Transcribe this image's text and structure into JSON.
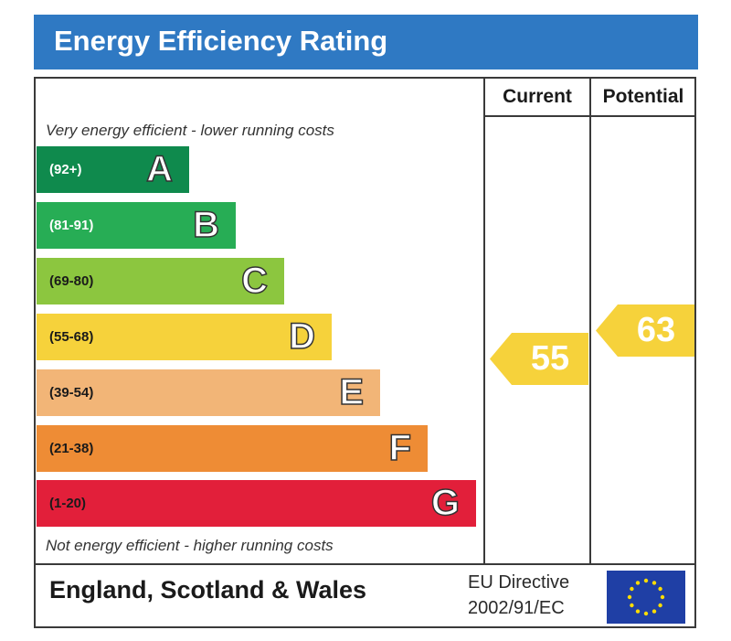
{
  "title": "Energy Efficiency Rating",
  "columns": {
    "current": "Current",
    "potential": "Potential"
  },
  "top_caption": "Very energy efficient - lower running costs",
  "bottom_caption": "Not energy efficient - higher running costs",
  "bands": [
    {
      "range": "(92+)",
      "letter": "A",
      "color": "#0f8a4d",
      "range_color": "#ffffff"
    },
    {
      "range": "(81-91)",
      "letter": "B",
      "color": "#27ad55",
      "range_color": "#ffffff"
    },
    {
      "range": "(69-80)",
      "letter": "C",
      "color": "#8cc63f",
      "range_color": "#1a1a1a"
    },
    {
      "range": "(55-68)",
      "letter": "D",
      "color": "#f6d23b",
      "range_color": "#1a1a1a"
    },
    {
      "range": "(39-54)",
      "letter": "E",
      "color": "#f2b577",
      "range_color": "#1a1a1a"
    },
    {
      "range": "(21-38)",
      "letter": "F",
      "color": "#ee8c35",
      "range_color": "#1a1a1a"
    },
    {
      "range": "(1-20)",
      "letter": "G",
      "color": "#e21f3a",
      "range_color": "#1a1a1a"
    }
  ],
  "ratings": {
    "current": {
      "value": "55",
      "color": "#f6d23b"
    },
    "potential": {
      "value": "63",
      "color": "#f6d23b"
    }
  },
  "footer": {
    "region": "England, Scotland & Wales",
    "directive_line1": "EU Directive",
    "directive_line2": "2002/91/EC"
  },
  "icons": {
    "flag": "eu-flag-icon"
  }
}
